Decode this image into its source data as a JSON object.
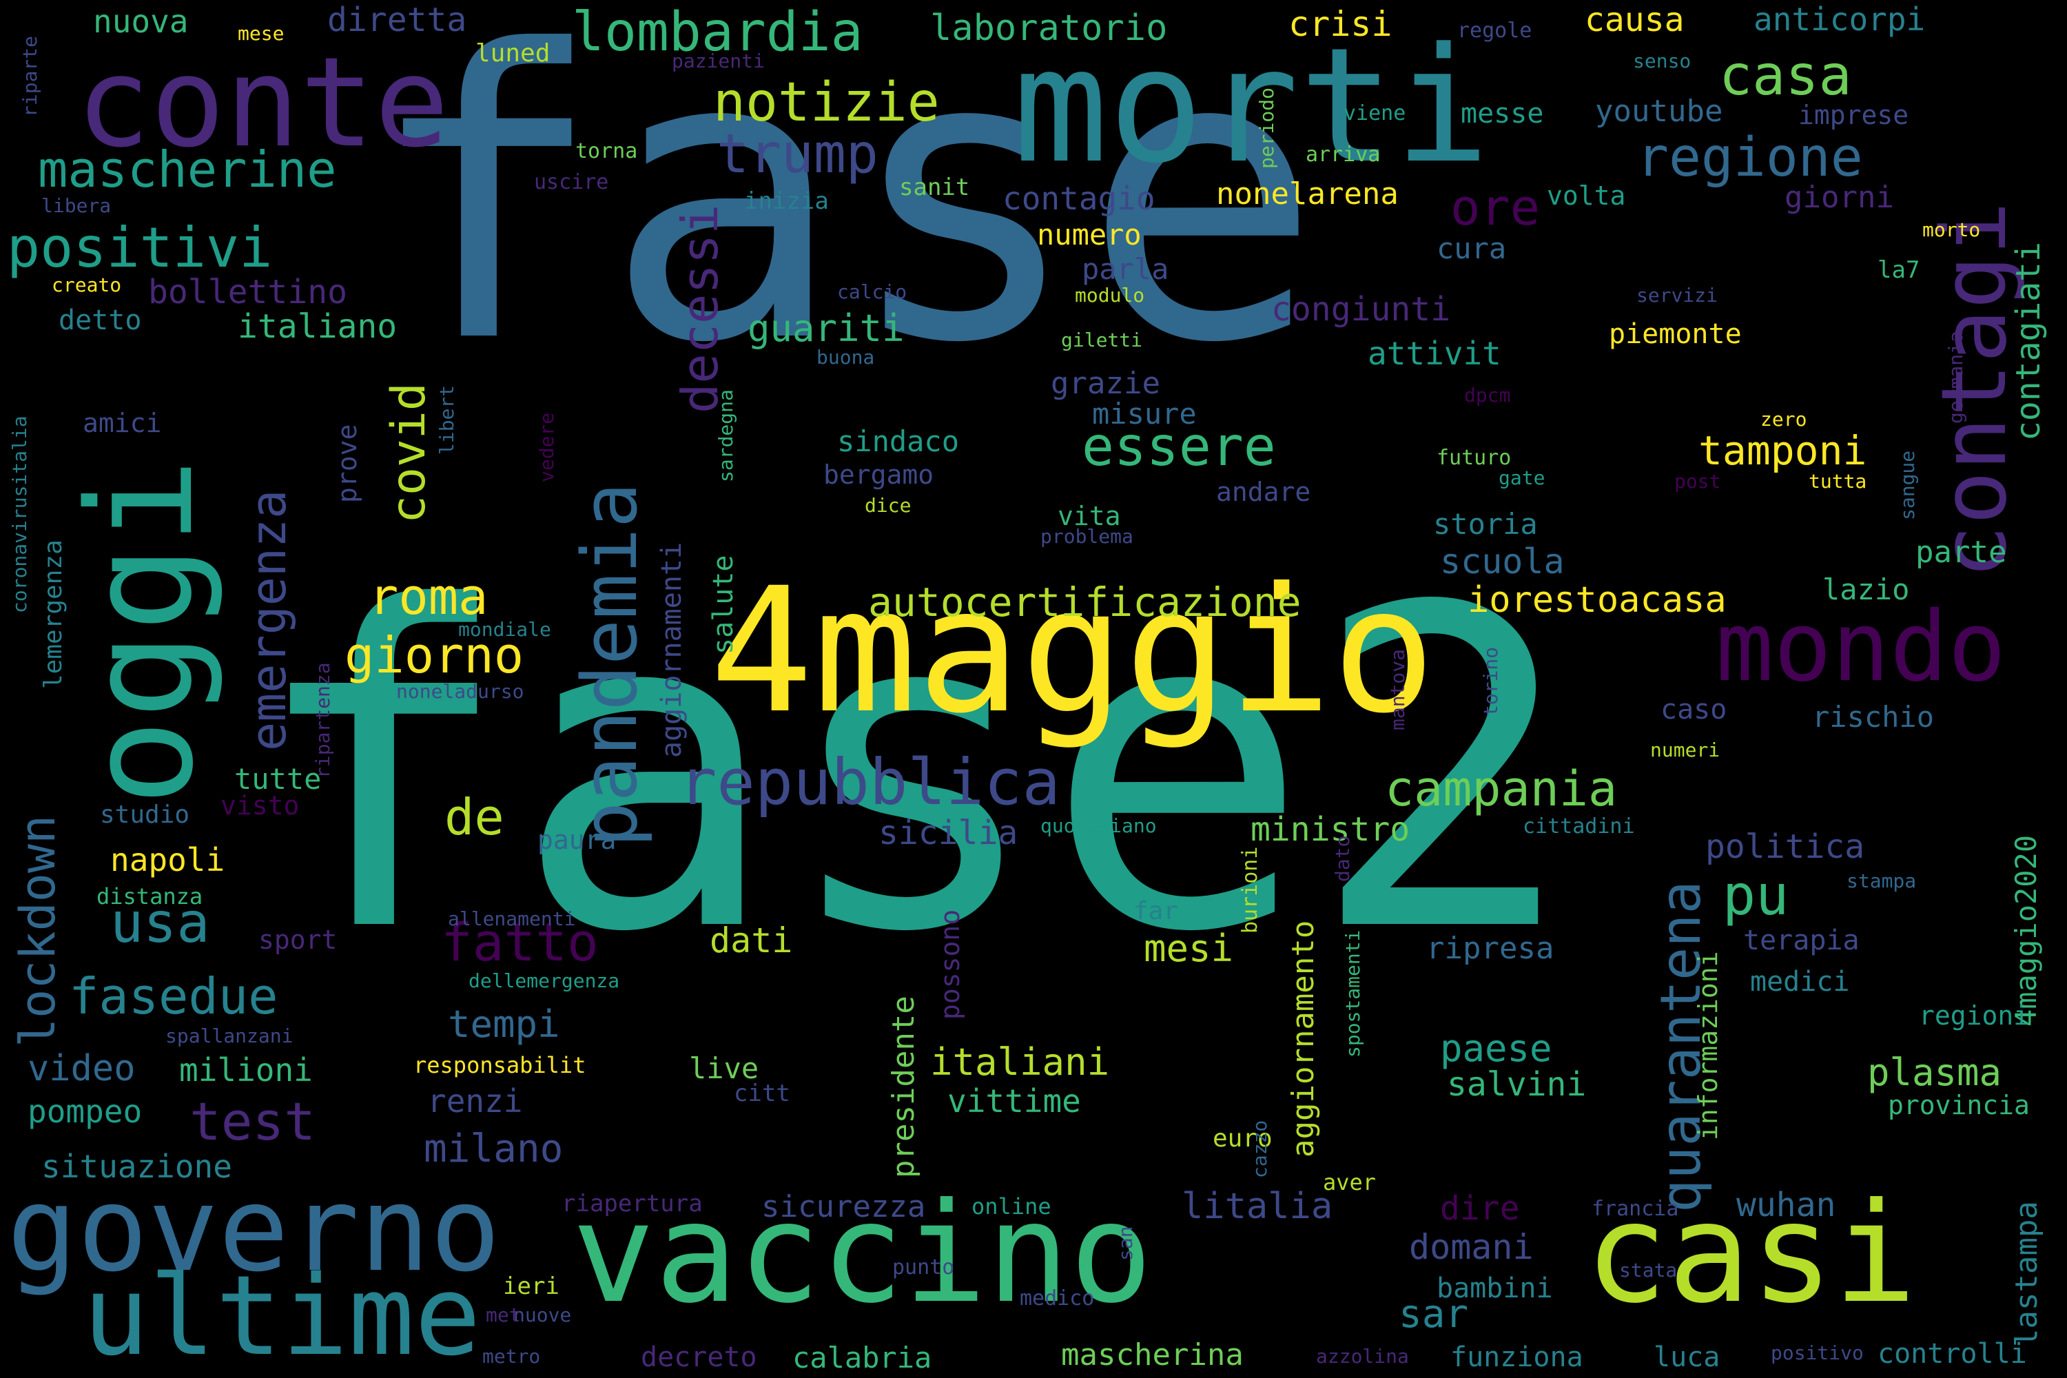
{
  "palette": [
    "#440154",
    "#482878",
    "#3e4989",
    "#31688e",
    "#26828e",
    "#1f9e89",
    "#35b779",
    "#6ece58",
    "#b5de2b",
    "#fde725"
  ],
  "words": [
    {
      "text": "fase",
      "weight": 100,
      "color": "#31688e"
    },
    {
      "text": "fase2",
      "weight": 95,
      "color": "#1f9e89"
    },
    {
      "text": "4maggio",
      "weight": 55,
      "color": "#fde725"
    },
    {
      "text": "morti",
      "weight": 50,
      "color": "#26828e"
    },
    {
      "text": "oggi",
      "weight": 48,
      "color": "#1f9e89"
    },
    {
      "text": "conte",
      "weight": 44,
      "color": "#482878"
    },
    {
      "text": "vaccino",
      "weight": 40,
      "color": "#35b779"
    },
    {
      "text": "casi",
      "weight": 40,
      "color": "#b5de2b"
    },
    {
      "text": "governo",
      "weight": 34,
      "color": "#31688e"
    },
    {
      "text": "ultime",
      "weight": 32,
      "color": "#26828e"
    },
    {
      "text": "mondo",
      "weight": 30,
      "color": "#440154"
    },
    {
      "text": "contagi",
      "weight": 30,
      "color": "#482878"
    },
    {
      "text": "pandemia",
      "weight": 28,
      "color": "#31688e"
    },
    {
      "text": "repubblica",
      "weight": 22,
      "color": "#3e4989"
    },
    {
      "text": "quarantena",
      "weight": 18,
      "color": "#31688e"
    },
    {
      "text": "lombardia",
      "weight": 18,
      "color": "#35b779"
    },
    {
      "text": "notizie",
      "weight": 18,
      "color": "#b5de2b"
    },
    {
      "text": "positivi",
      "weight": 18,
      "color": "#1f9e89"
    },
    {
      "text": "mascherine",
      "weight": 17,
      "color": "#1f9e89"
    },
    {
      "text": "casa",
      "weight": 17,
      "color": "#6ece58"
    },
    {
      "text": "regione",
      "weight": 17,
      "color": "#31688e"
    },
    {
      "text": "trump",
      "weight": 17,
      "color": "#3e4989"
    },
    {
      "text": "decessi",
      "weight": 17,
      "color": "#482878"
    },
    {
      "text": "emergenza",
      "weight": 16,
      "color": "#3e4989"
    },
    {
      "text": "lockdown",
      "weight": 16,
      "color": "#31688e"
    },
    {
      "text": "essere",
      "weight": 16,
      "color": "#35b779"
    },
    {
      "text": "campania",
      "weight": 16,
      "color": "#6ece58"
    },
    {
      "text": "fatto",
      "weight": 16,
      "color": "#440154"
    },
    {
      "text": "pu",
      "weight": 16,
      "color": "#35b779"
    },
    {
      "text": "usa",
      "weight": 16,
      "color": "#26828e"
    },
    {
      "text": "fasedue",
      "weight": 15,
      "color": "#26828e"
    },
    {
      "text": "test",
      "weight": 15,
      "color": "#482878"
    },
    {
      "text": "covid",
      "weight": 15,
      "color": "#b5de2b"
    },
    {
      "text": "ore",
      "weight": 14,
      "color": "#440154"
    },
    {
      "text": "giorno",
      "weight": 14,
      "color": "#fde725"
    },
    {
      "text": "roma",
      "weight": 14,
      "color": "#fde725"
    },
    {
      "text": "de",
      "weight": 14,
      "color": "#b5de2b"
    },
    {
      "text": "autocertificazione",
      "weight": 12,
      "color": "#b5de2b"
    },
    {
      "text": "iorestoacasa",
      "weight": 11,
      "color": "#fde725"
    },
    {
      "text": "tamponi",
      "weight": 12,
      "color": "#fde725"
    },
    {
      "text": "contagiati",
      "weight": 11,
      "color": "#35b779"
    },
    {
      "text": "lastampa",
      "weight": 10,
      "color": "#26828e"
    },
    {
      "text": "4maggio2020",
      "weight": 10,
      "color": "#35b779"
    },
    {
      "text": "aggiornamento",
      "weight": 10,
      "color": "#b5de2b"
    },
    {
      "text": "presidente",
      "weight": 10,
      "color": "#6ece58"
    },
    {
      "text": "italiani",
      "weight": 11,
      "color": "#b5de2b"
    },
    {
      "text": "plasma",
      "weight": 11,
      "color": "#6ece58"
    },
    {
      "text": "paese",
      "weight": 11,
      "color": "#1f9e89"
    },
    {
      "text": "salvini",
      "weight": 10,
      "color": "#35b779"
    },
    {
      "text": "politica",
      "weight": 10,
      "color": "#3e4989"
    },
    {
      "text": "ministro",
      "weight": 10,
      "color": "#6ece58"
    },
    {
      "text": "milano",
      "weight": 11,
      "color": "#3e4989"
    },
    {
      "text": "tempi",
      "weight": 11,
      "color": "#31688e"
    },
    {
      "text": "mesi",
      "weight": 11,
      "color": "#b5de2b"
    },
    {
      "text": "dati",
      "weight": 11,
      "color": "#b5de2b"
    },
    {
      "text": "sicilia",
      "weight": 10,
      "color": "#3e4989"
    },
    {
      "text": "napoli",
      "weight": 10,
      "color": "#fde725"
    },
    {
      "text": "video",
      "weight": 11,
      "color": "#31688e"
    },
    {
      "text": "milioni",
      "weight": 10,
      "color": "#35b779"
    },
    {
      "text": "pompeo",
      "weight": 10,
      "color": "#1f9e89"
    },
    {
      "text": "situazione",
      "weight": 10,
      "color": "#26828e"
    },
    {
      "text": "renzi",
      "weight": 10,
      "color": "#3e4989"
    },
    {
      "text": "vittime",
      "weight": 10,
      "color": "#35b779"
    },
    {
      "text": "sicurezza",
      "weight": 10,
      "color": "#3e4989"
    },
    {
      "text": "litalia",
      "weight": 11,
      "color": "#3e4989"
    },
    {
      "text": "dire",
      "weight": 10,
      "color": "#440154"
    },
    {
      "text": "wuhan",
      "weight": 10,
      "color": "#31688e"
    },
    {
      "text": "domani",
      "weight": 10,
      "color": "#3e4989"
    },
    {
      "text": "sar",
      "weight": 11,
      "color": "#26828e"
    },
    {
      "text": "bambini",
      "weight": 9,
      "color": "#26828e"
    },
    {
      "text": "mascherina",
      "weight": 10,
      "color": "#6ece58"
    },
    {
      "text": "funziona",
      "weight": 9,
      "color": "#26828e"
    },
    {
      "text": "luca",
      "weight": 9,
      "color": "#26828e"
    },
    {
      "text": "calabria",
      "weight": 9,
      "color": "#35b779"
    },
    {
      "text": "decreto",
      "weight": 9,
      "color": "#482878"
    },
    {
      "text": "controlli",
      "weight": 9,
      "color": "#26828e"
    },
    {
      "text": "ripresa",
      "weight": 10,
      "color": "#31688e"
    },
    {
      "text": "terapia",
      "weight": 9,
      "color": "#3e4989"
    },
    {
      "text": "medici",
      "weight": 9,
      "color": "#26828e"
    },
    {
      "text": "regioni",
      "weight": 8,
      "color": "#1f9e89"
    },
    {
      "text": "provincia",
      "weight": 8,
      "color": "#35b779"
    },
    {
      "text": "informazioni",
      "weight": 8,
      "color": "#6ece58"
    },
    {
      "text": "bollettino",
      "weight": 11,
      "color": "#482878"
    },
    {
      "text": "italiano",
      "weight": 11,
      "color": "#35b779"
    },
    {
      "text": "guariti",
      "weight": 11,
      "color": "#35b779"
    },
    {
      "text": "congiunti",
      "weight": 11,
      "color": "#482878"
    },
    {
      "text": "attivit",
      "weight": 10,
      "color": "#1f9e89"
    },
    {
      "text": "contagio",
      "weight": 10,
      "color": "#3e4989"
    },
    {
      "text": "nonelarena",
      "weight": 10,
      "color": "#fde725"
    },
    {
      "text": "numero",
      "weight": 9,
      "color": "#fde725"
    },
    {
      "text": "crisi",
      "weight": 10,
      "color": "#fde725"
    },
    {
      "text": "causa",
      "weight": 10,
      "color": "#fde725"
    },
    {
      "text": "laboratorio",
      "weight": 10,
      "color": "#35b779"
    },
    {
      "text": "diretta",
      "weight": 10,
      "color": "#3e4989"
    },
    {
      "text": "nuova",
      "weight": 10,
      "color": "#35b779"
    },
    {
      "text": "anticorpi",
      "weight": 10,
      "color": "#26828e"
    },
    {
      "text": "youtube",
      "weight": 9,
      "color": "#31688e"
    },
    {
      "text": "messe",
      "weight": 9,
      "color": "#1f9e89"
    },
    {
      "text": "imprese",
      "weight": 8,
      "color": "#3e4989"
    },
    {
      "text": "giorni",
      "weight": 9,
      "color": "#482878"
    },
    {
      "text": "volta",
      "weight": 8,
      "color": "#1f9e89"
    },
    {
      "text": "cura",
      "weight": 9,
      "color": "#31688e"
    },
    {
      "text": "piemonte",
      "weight": 9,
      "color": "#fde725"
    },
    {
      "text": "parla",
      "weight": 9,
      "color": "#3e4989"
    },
    {
      "text": "grazie",
      "weight": 9,
      "color": "#3e4989"
    },
    {
      "text": "misure",
      "weight": 9,
      "color": "#31688e"
    },
    {
      "text": "sindaco",
      "weight": 9,
      "color": "#1f9e89"
    },
    {
      "text": "bergamo",
      "weight": 8,
      "color": "#3e4989"
    },
    {
      "text": "andare",
      "weight": 8,
      "color": "#3e4989"
    },
    {
      "text": "vita",
      "weight": 8,
      "color": "#35b779"
    },
    {
      "text": "storia",
      "weight": 9,
      "color": "#26828e"
    },
    {
      "text": "scuola",
      "weight": 10,
      "color": "#31688e"
    },
    {
      "text": "lazio",
      "weight": 9,
      "color": "#35b779"
    },
    {
      "text": "parte",
      "weight": 9,
      "color": "#35b779"
    },
    {
      "text": "caso",
      "weight": 9,
      "color": "#3e4989"
    },
    {
      "text": "rischio",
      "weight": 9,
      "color": "#31688e"
    },
    {
      "text": "salute",
      "weight": 9,
      "color": "#35b779"
    },
    {
      "text": "aggiornamenti",
      "weight": 9,
      "color": "#3e4989"
    },
    {
      "text": "prove",
      "weight": 8,
      "color": "#3e4989"
    },
    {
      "text": "lemergenza",
      "weight": 8,
      "color": "#26828e"
    },
    {
      "text": "detto",
      "weight": 8,
      "color": "#26828e"
    },
    {
      "text": "amici",
      "weight": 8,
      "color": "#3e4989"
    },
    {
      "text": "tutte",
      "weight": 9,
      "color": "#35b779"
    },
    {
      "text": "studio",
      "weight": 8,
      "color": "#31688e"
    },
    {
      "text": "visto",
      "weight": 8,
      "color": "#440154"
    },
    {
      "text": "distanza",
      "weight": 7,
      "color": "#35b779"
    },
    {
      "text": "sport",
      "weight": 8,
      "color": "#482878"
    },
    {
      "text": "paura",
      "weight": 8,
      "color": "#31688e"
    },
    {
      "text": "live",
      "weight": 9,
      "color": "#6ece58"
    },
    {
      "text": "citt",
      "weight": 7,
      "color": "#3e4989"
    },
    {
      "text": "possono",
      "weight": 8,
      "color": "#482878"
    },
    {
      "text": "euro",
      "weight": 8,
      "color": "#b5de2b"
    },
    {
      "text": "far",
      "weight": 8,
      "color": "#26828e"
    },
    {
      "text": "online",
      "weight": 7,
      "color": "#1f9e89"
    },
    {
      "text": "ieri",
      "weight": 8,
      "color": "#b5de2b"
    },
    {
      "text": "punto",
      "weight": 6,
      "color": "#3e4989"
    },
    {
      "text": "medico",
      "weight": 7,
      "color": "#3e4989"
    },
    {
      "text": "aver",
      "weight": 7,
      "color": "#b5de2b"
    },
    {
      "text": "francia",
      "weight": 7,
      "color": "#3e4989"
    },
    {
      "text": "stata",
      "weight": 6,
      "color": "#3e4989"
    },
    {
      "text": "positivo",
      "weight": 6,
      "color": "#3e4989"
    },
    {
      "text": "azzolina",
      "weight": 6,
      "color": "#482878"
    },
    {
      "text": "metro",
      "weight": 6,
      "color": "#3e4989"
    },
    {
      "text": "nuove",
      "weight": 6,
      "color": "#3e4989"
    },
    {
      "text": "met",
      "weight": 6,
      "color": "#482878"
    },
    {
      "text": "riapertura",
      "weight": 7,
      "color": "#482878"
    },
    {
      "text": "responsabilit",
      "weight": 7,
      "color": "#fde725"
    },
    {
      "text": "dellemergenza",
      "weight": 6,
      "color": "#1f9e89"
    },
    {
      "text": "allenamenti",
      "weight": 6,
      "color": "#3e4989"
    },
    {
      "text": "spallanzani",
      "weight": 6,
      "color": "#3e4989"
    },
    {
      "text": "noneladurso",
      "weight": 6,
      "color": "#3e4989"
    },
    {
      "text": "mondiale",
      "weight": 6,
      "color": "#26828e"
    },
    {
      "text": "quotidiano",
      "weight": 6,
      "color": "#1f9e89"
    },
    {
      "text": "cittadini",
      "weight": 6,
      "color": "#26828e"
    },
    {
      "text": "numeri",
      "weight": 6,
      "color": "#b5de2b"
    },
    {
      "text": "stampa",
      "weight": 6,
      "color": "#31688e"
    },
    {
      "text": "dato",
      "weight": 6,
      "color": "#482878"
    },
    {
      "text": "burioni",
      "weight": 6,
      "color": "#b5de2b"
    },
    {
      "text": "spostamenti",
      "weight": 6,
      "color": "#35b779"
    },
    {
      "text": "cazzo",
      "weight": 6,
      "color": "#31688e"
    },
    {
      "text": "san",
      "weight": 6,
      "color": "#3e4989"
    },
    {
      "text": "torino",
      "weight": 6,
      "color": "#3e4989"
    },
    {
      "text": "mantova",
      "weight": 6,
      "color": "#482878"
    },
    {
      "text": "gate",
      "weight": 6,
      "color": "#1f9e89"
    },
    {
      "text": "futuro",
      "weight": 6,
      "color": "#6ece58"
    },
    {
      "text": "post",
      "weight": 6,
      "color": "#440154"
    },
    {
      "text": "tutta",
      "weight": 6,
      "color": "#fde725"
    },
    {
      "text": "zero",
      "weight": 6,
      "color": "#fde725"
    },
    {
      "text": "sangue",
      "weight": 6,
      "color": "#31688e"
    },
    {
      "text": "germania",
      "weight": 6,
      "color": "#482878"
    },
    {
      "text": "servizi",
      "weight": 6,
      "color": "#3e4989"
    },
    {
      "text": "la7",
      "weight": 7,
      "color": "#35b779"
    },
    {
      "text": "morto",
      "weight": 6,
      "color": "#fde725"
    },
    {
      "text": "giletti",
      "weight": 6,
      "color": "#6ece58"
    },
    {
      "text": "modulo",
      "weight": 6,
      "color": "#b5de2b"
    },
    {
      "text": "calcio",
      "weight": 6,
      "color": "#3e4989"
    },
    {
      "text": "buona",
      "weight": 6,
      "color": "#31688e"
    },
    {
      "text": "dpcm",
      "weight": 6,
      "color": "#440154"
    },
    {
      "text": "vedere",
      "weight": 6,
      "color": "#440154"
    },
    {
      "text": "problema",
      "weight": 6,
      "color": "#3e4989"
    },
    {
      "text": "dice",
      "weight": 6,
      "color": "#b5de2b"
    },
    {
      "text": "sardegna",
      "weight": 6,
      "color": "#35b779"
    },
    {
      "text": "libert",
      "weight": 6,
      "color": "#31688e"
    },
    {
      "text": "coronavirusitalia",
      "weight": 6,
      "color": "#26828e"
    },
    {
      "text": "creato",
      "weight": 6,
      "color": "#fde725"
    },
    {
      "text": "libera",
      "weight": 6,
      "color": "#3e4989"
    },
    {
      "text": "riparte",
      "weight": 6,
      "color": "#3e4989"
    },
    {
      "text": "mese",
      "weight": 6,
      "color": "#fde725"
    },
    {
      "text": "luned",
      "weight": 7,
      "color": "#b5de2b"
    },
    {
      "text": "pazienti",
      "weight": 6,
      "color": "#482878"
    },
    {
      "text": "torna",
      "weight": 6,
      "color": "#6ece58"
    },
    {
      "text": "uscire",
      "weight": 6,
      "color": "#482878"
    },
    {
      "text": "inizia",
      "weight": 7,
      "color": "#26828e"
    },
    {
      "text": "sanit",
      "weight": 7,
      "color": "#6ece58"
    },
    {
      "text": "periodo",
      "weight": 6,
      "color": "#6ece58"
    },
    {
      "text": "arriva",
      "weight": 6,
      "color": "#6ece58"
    },
    {
      "text": "viene",
      "weight": 6,
      "color": "#1f9e89"
    },
    {
      "text": "regole",
      "weight": 6,
      "color": "#3e4989"
    },
    {
      "text": "senso",
      "weight": 6,
      "color": "#26828e"
    },
    {
      "text": "ripartenza",
      "weight": 6,
      "color": "#482878"
    }
  ]
}
